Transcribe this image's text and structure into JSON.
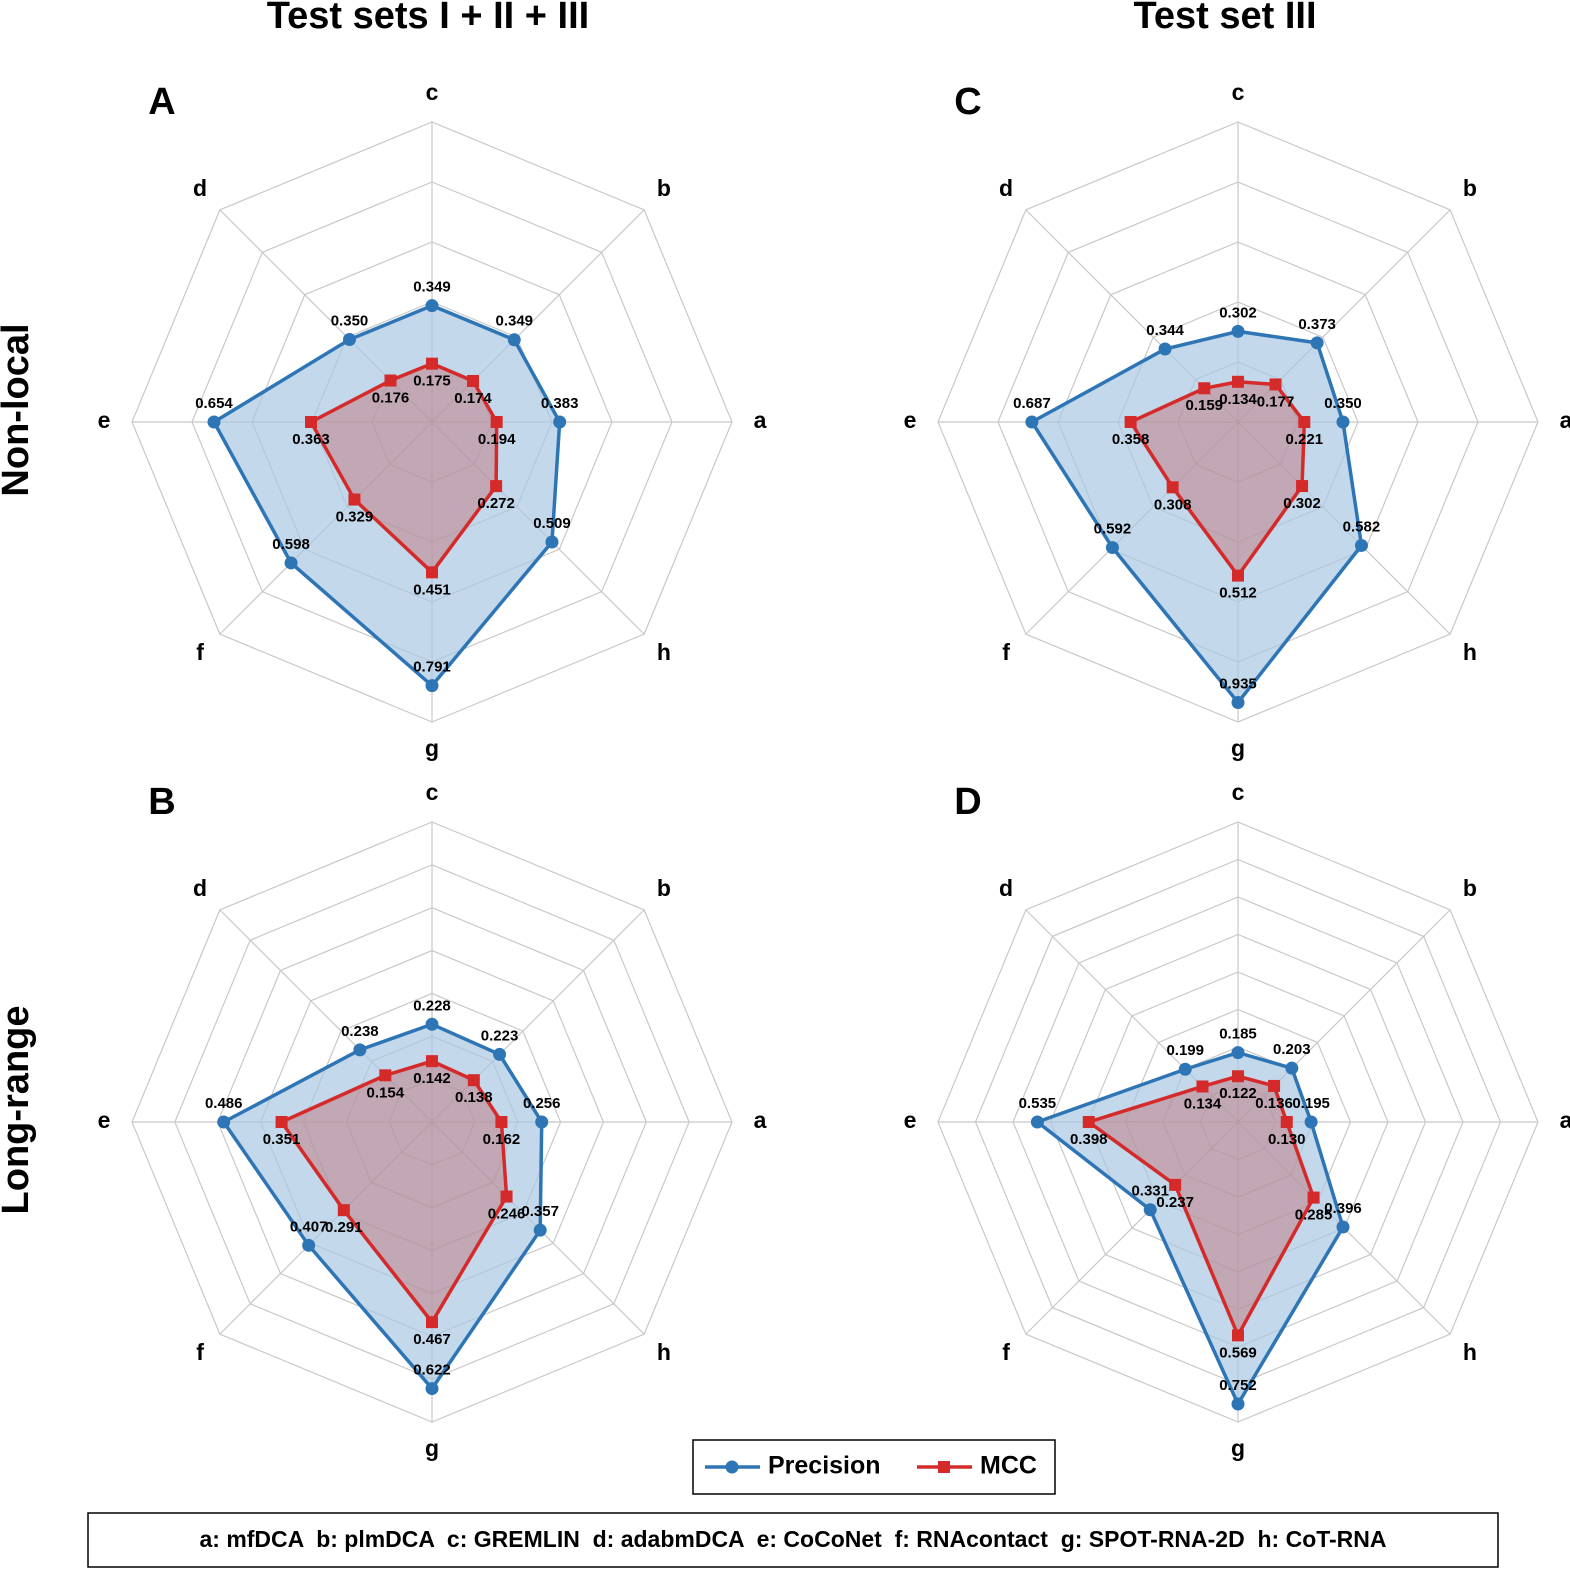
{
  "column_titles": [
    "Test sets I + II + III",
    "Test set III"
  ],
  "row_labels": [
    "Non-local",
    "Long-range"
  ],
  "key": "a: mfDCA  b: plmDCA  c: GREMLIN  d: adabmDCA  e: CoCoNet  f: RNAcontact  g: SPOT-RNA-2D  h: CoT-RNA",
  "chart_data": [
    {
      "type": "radar",
      "panel": "A",
      "categories": [
        "c",
        "b",
        "a",
        "h",
        "g",
        "f",
        "e",
        "d"
      ],
      "rlim": [
        0,
        0.9
      ],
      "rticks": [
        0.18,
        0.36,
        0.54,
        0.72,
        0.9
      ],
      "series": [
        {
          "name": "Precision",
          "color": "#2e75b6",
          "values": [
            0.349,
            0.349,
            0.383,
            0.509,
            0.791,
            0.598,
            0.654,
            0.35
          ],
          "value_labels": [
            "0.349",
            "0.349",
            "0.383",
            "0.509",
            "0.791",
            "0.598",
            "0.654",
            "0.350"
          ]
        },
        {
          "name": "MCC",
          "color": "#d42a2a",
          "values": [
            0.175,
            0.174,
            0.194,
            0.272,
            0.451,
            0.329,
            0.363,
            0.176
          ],
          "value_labels": [
            "0.175",
            "0.174",
            "0.194",
            "0.272",
            "0.451",
            "0.329",
            "0.363",
            "0.176"
          ]
        }
      ]
    },
    {
      "type": "radar",
      "panel": "B",
      "categories": [
        "c",
        "b",
        "a",
        "h",
        "g",
        "f",
        "e",
        "d"
      ],
      "rlim": [
        0,
        0.7
      ],
      "rticks": [
        0.1,
        0.2,
        0.3,
        0.4,
        0.5,
        0.6,
        0.7
      ],
      "series": [
        {
          "name": "Precision",
          "color": "#2e75b6",
          "values": [
            0.228,
            0.223,
            0.256,
            0.357,
            0.622,
            0.407,
            0.486,
            0.238
          ],
          "value_labels": [
            "0.228",
            "0.223",
            "0.256",
            "0.357",
            "0.622",
            "0.407",
            "0.486",
            "0.238"
          ]
        },
        {
          "name": "MCC",
          "color": "#d42a2a",
          "values": [
            0.142,
            0.138,
            0.162,
            0.246,
            0.467,
            0.291,
            0.351,
            0.154
          ],
          "value_labels": [
            "0.142",
            "0.138",
            "0.162",
            "0.246",
            "0.467",
            "0.291",
            "0.351",
            "0.154"
          ]
        }
      ]
    },
    {
      "type": "radar",
      "panel": "C",
      "categories": [
        "c",
        "b",
        "a",
        "h",
        "g",
        "f",
        "e",
        "d"
      ],
      "rlim": [
        0,
        1
      ],
      "rticks": [
        0.2,
        0.4,
        0.6,
        0.8,
        1
      ],
      "series": [
        {
          "name": "Precision",
          "color": "#2e75b6",
          "values": [
            0.302,
            0.373,
            0.35,
            0.582,
            0.935,
            0.592,
            0.687,
            0.344
          ],
          "value_labels": [
            "0.302",
            "0.373",
            "0.350",
            "0.582",
            "0.935",
            "0.592",
            "0.687",
            "0.344"
          ]
        },
        {
          "name": "MCC",
          "color": "#d42a2a",
          "values": [
            0.134,
            0.177,
            0.221,
            0.302,
            0.512,
            0.308,
            0.358,
            0.159
          ],
          "value_labels": [
            "0.134",
            "0.177",
            "0.221",
            "0.302",
            "0.512",
            "0.308",
            "0.358",
            "0.159"
          ]
        }
      ]
    },
    {
      "type": "radar",
      "panel": "D",
      "categories": [
        "c",
        "b",
        "a",
        "h",
        "g",
        "f",
        "e",
        "d"
      ],
      "rlim": [
        0,
        0.8
      ],
      "rticks": [
        0.1,
        0.2,
        0.3,
        0.4,
        0.5,
        0.6,
        0.7,
        0.8
      ],
      "series": [
        {
          "name": "Precision",
          "color": "#2e75b6",
          "values": [
            0.185,
            0.203,
            0.195,
            0.396,
            0.752,
            0.331,
            0.535,
            0.199
          ],
          "value_labels": [
            "0.185",
            "0.203",
            "0.195",
            "0.396",
            "0.752",
            "0.331",
            "0.535",
            "0.199"
          ]
        },
        {
          "name": "MCC",
          "color": "#d42a2a",
          "values": [
            0.122,
            0.136,
            0.13,
            0.285,
            0.569,
            0.237,
            0.398,
            0.134
          ],
          "value_labels": [
            "0.122",
            "0.136",
            "0.130",
            "0.285",
            "0.569",
            "0.237",
            "0.398",
            "0.134"
          ]
        }
      ]
    }
  ]
}
